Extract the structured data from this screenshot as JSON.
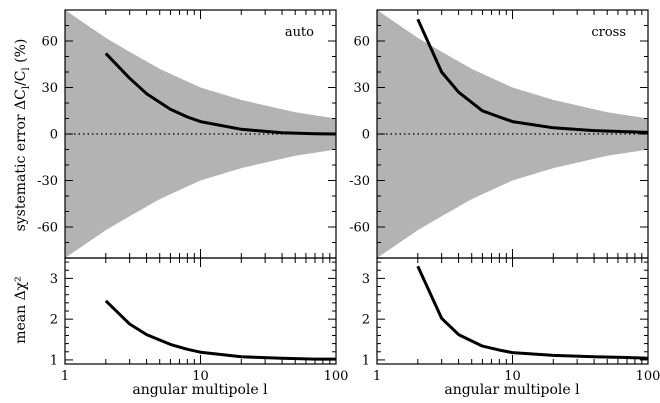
{
  "chart_data": {
    "type": "line",
    "xlabel": "angular multipole l",
    "xscale": "log",
    "xlim": [
      1,
      100
    ],
    "x_ticks": [
      1,
      10,
      100
    ],
    "ylabel_top": "systematic error ΔC",
    "ylabel_top_sub1": "l",
    "ylabel_top_mid": "/C",
    "ylabel_top_sub2": "l",
    "ylabel_top_unit": " (%)",
    "ylabel_bottom": "mean Δχ²",
    "panels": [
      {
        "label": "auto",
        "top": {
          "ylim": [
            -80,
            80
          ],
          "y_ticks": [
            -60,
            -30,
            0,
            30,
            60
          ],
          "band_x": [
            1,
            2,
            3,
            5,
            10,
            20,
            50,
            100
          ],
          "band_upper": [
            80,
            62,
            53,
            42,
            30,
            22,
            14,
            10
          ],
          "series": [
            {
              "x": [
                2,
                3,
                4,
                6,
                8,
                10,
                20,
                40,
                70,
                100
              ],
              "y": [
                52,
                36,
                26,
                16,
                11,
                8,
                3,
                0.8,
                0.2,
                0
              ]
            }
          ]
        },
        "bottom": {
          "ylim": [
            0.9,
            3.5
          ],
          "y_ticks": [
            1,
            2,
            3
          ],
          "series": [
            {
              "x": [
                2,
                3,
                4,
                6,
                8,
                10,
                20,
                40,
                70,
                100
              ],
              "y": [
                2.45,
                1.88,
                1.62,
                1.38,
                1.26,
                1.19,
                1.08,
                1.04,
                1.02,
                1.02
              ]
            }
          ]
        }
      },
      {
        "label": "cross",
        "top": {
          "ylim": [
            -80,
            80
          ],
          "y_ticks": [
            -60,
            -30,
            0,
            30,
            60
          ],
          "band_x": [
            1,
            2,
            3,
            5,
            10,
            20,
            50,
            100
          ],
          "band_upper": [
            80,
            62,
            53,
            42,
            30,
            22,
            14,
            10
          ],
          "series": [
            {
              "x": [
                2,
                3,
                4,
                6,
                8,
                10,
                20,
                40,
                70,
                100
              ],
              "y": [
                74,
                40,
                27,
                15,
                11,
                8,
                4,
                2.2,
                1.5,
                1
              ]
            }
          ]
        },
        "bottom": {
          "ylim": [
            0.9,
            3.5
          ],
          "y_ticks": [
            1,
            2,
            3
          ],
          "series": [
            {
              "x": [
                2,
                3,
                4,
                6,
                8,
                10,
                20,
                40,
                70,
                100
              ],
              "y": [
                3.3,
                2.02,
                1.62,
                1.34,
                1.24,
                1.18,
                1.11,
                1.08,
                1.06,
                1.04
              ]
            }
          ]
        }
      }
    ],
    "colors": {
      "band": "#b3b3b3",
      "line": "#000000",
      "zero_line": "#000000"
    }
  }
}
